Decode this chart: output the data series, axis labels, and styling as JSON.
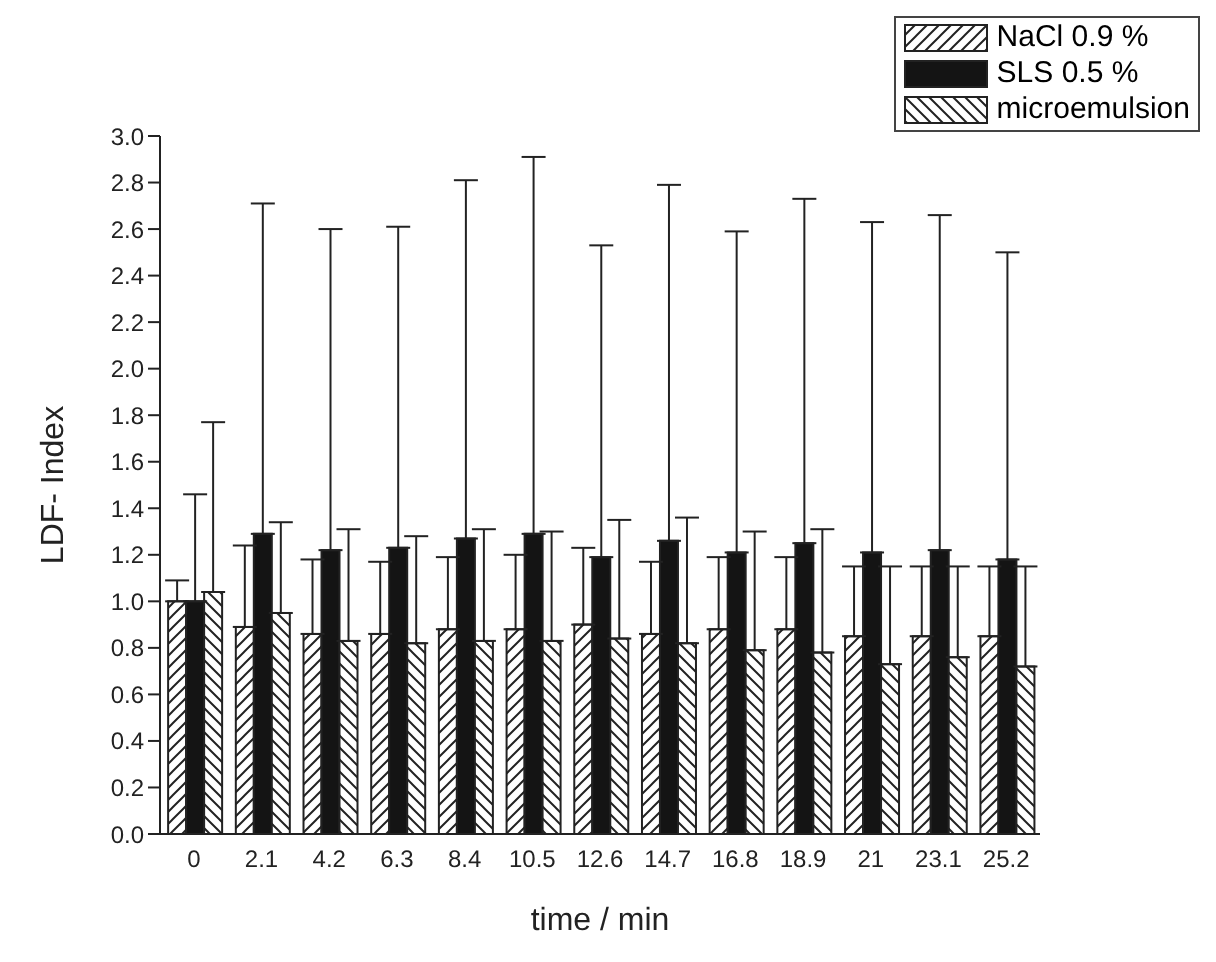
{
  "chart_data": {
    "type": "bar",
    "xlabel": "time / min",
    "ylabel": "LDF- Index",
    "categories": [
      "0",
      "2.1",
      "4.2",
      "6.3",
      "8.4",
      "10.5",
      "12.6",
      "14.7",
      "16.8",
      "18.9",
      "21",
      "23.1",
      "25.2"
    ],
    "series": [
      {
        "name": "NaCl 0.9 %",
        "color": "#222222",
        "values": [
          1.0,
          0.89,
          0.86,
          0.86,
          0.88,
          0.88,
          0.9,
          0.86,
          0.88,
          0.88,
          0.85,
          0.85,
          0.85
        ],
        "errors": [
          [
            1.0,
            1.09
          ],
          [
            0.89,
            1.24
          ],
          [
            0.86,
            1.18
          ],
          [
            0.86,
            1.17
          ],
          [
            0.88,
            1.19
          ],
          [
            0.88,
            1.2
          ],
          [
            0.9,
            1.23
          ],
          [
            0.86,
            1.17
          ],
          [
            0.88,
            1.19
          ],
          [
            0.88,
            1.19
          ],
          [
            0.85,
            1.15
          ],
          [
            0.85,
            1.15
          ],
          [
            0.85,
            1.15
          ]
        ]
      },
      {
        "name": "SLS 0.5 %",
        "color": "#141414",
        "values": [
          1.0,
          1.29,
          1.22,
          1.23,
          1.27,
          1.29,
          1.19,
          1.26,
          1.21,
          1.25,
          1.21,
          1.22,
          1.18
        ],
        "errors": [
          [
            1.0,
            1.46
          ],
          [
            1.29,
            2.71
          ],
          [
            1.22,
            2.6
          ],
          [
            1.23,
            2.61
          ],
          [
            1.27,
            2.81
          ],
          [
            1.29,
            2.91
          ],
          [
            1.19,
            2.53
          ],
          [
            1.26,
            2.79
          ],
          [
            1.21,
            2.59
          ],
          [
            1.25,
            2.73
          ],
          [
            1.21,
            2.63
          ],
          [
            1.22,
            2.66
          ],
          [
            1.18,
            2.5
          ]
        ]
      },
      {
        "name": "microemulsion",
        "color": "#222222",
        "values": [
          1.04,
          0.95,
          0.83,
          0.82,
          0.83,
          0.83,
          0.84,
          0.82,
          0.79,
          0.78,
          0.73,
          0.76,
          0.72
        ],
        "errors": [
          [
            1.04,
            1.77
          ],
          [
            0.95,
            1.34
          ],
          [
            0.83,
            1.31
          ],
          [
            0.82,
            1.28
          ],
          [
            0.83,
            1.31
          ],
          [
            0.83,
            1.3
          ],
          [
            0.84,
            1.35
          ],
          [
            0.82,
            1.36
          ],
          [
            0.79,
            1.3
          ],
          [
            0.78,
            1.31
          ],
          [
            0.73,
            1.15
          ],
          [
            0.76,
            1.15
          ],
          [
            0.72,
            1.15
          ]
        ]
      }
    ],
    "ylim": [
      0,
      3.0
    ],
    "yticks": [
      {
        "value": 0,
        "label": "0.0"
      },
      0.2,
      0.4,
      0.6,
      0.8,
      {
        "value": 1,
        "label": "1.0"
      },
      1.2,
      1.4,
      1.6,
      1.8,
      {
        "value": 2,
        "label": "2.0"
      },
      2.2,
      2.4,
      2.6,
      2.8,
      {
        "value": 3,
        "label": "3.0"
      }
    ],
    "grid": false,
    "legend": "top right"
  }
}
